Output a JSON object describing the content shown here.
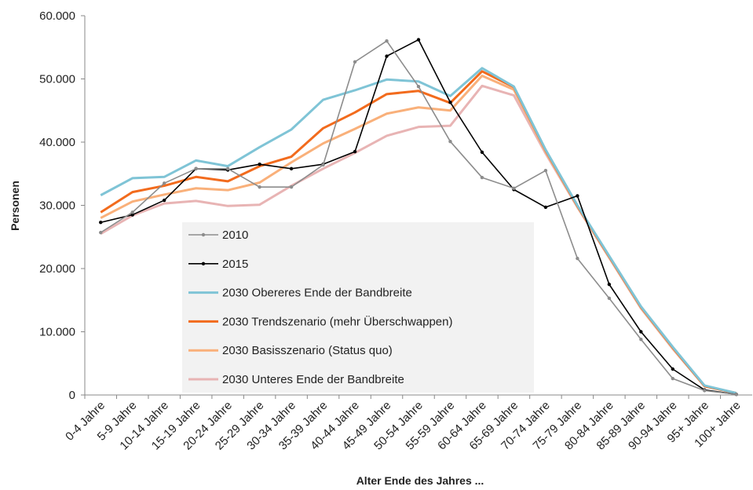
{
  "chart_data": {
    "type": "line",
    "y_label": "Personen",
    "x_label": "Alter Ende des Jahres ...",
    "categories": [
      "0-4 Jahre",
      "5-9 Jahre",
      "10-14 Jahre",
      "15-19 Jahre",
      "20-24 Jahre",
      "25-29 Jahre",
      "30-34 Jahre",
      "35-39 Jahre",
      "40-44 Jahre",
      "45-49 Jahre",
      "50-54 Jahre",
      "55-59 Jahre",
      "60-64 Jahre",
      "65-69 Jahre",
      "70-74 Jahre",
      "75-79 Jahre",
      "80-84 Jahre",
      "85-89 Jahre",
      "90-94 Jahre",
      "95+ Jahre",
      "100+ Jahre"
    ],
    "ylim": [
      0,
      60000
    ],
    "yticks": [
      {
        "value": 0,
        "label": "0"
      },
      {
        "value": 10000,
        "label": "10.000"
      },
      {
        "value": 20000,
        "label": "20.000"
      },
      {
        "value": 30000,
        "label": "30.000"
      },
      {
        "value": 40000,
        "label": "40.000"
      },
      {
        "value": 50000,
        "label": "50.000"
      },
      {
        "value": 60000,
        "label": "60.000"
      }
    ],
    "grid": false,
    "series": [
      {
        "name": "2010",
        "color": "#8c8c8c",
        "width": 1.6,
        "markers": true,
        "values": [
          25700,
          28900,
          33500,
          35800,
          35800,
          32900,
          32900,
          36400,
          52700,
          56000,
          48800,
          40100,
          34400,
          32700,
          35500,
          21600,
          15300,
          8800,
          2600,
          700,
          100
        ]
      },
      {
        "name": "2015",
        "color": "#000000",
        "width": 1.6,
        "markers": true,
        "values": [
          27300,
          28500,
          30800,
          35800,
          35600,
          36500,
          35800,
          36500,
          38500,
          53600,
          56200,
          46300,
          38400,
          32500,
          29700,
          31500,
          17500,
          10000,
          4100,
          800,
          100
        ]
      },
      {
        "name": "2030 Obereres Ende der Bandbreite",
        "color": "#7fc4d6",
        "width": 3,
        "markers": false,
        "values": [
          31600,
          34300,
          34500,
          37100,
          36200,
          39200,
          42000,
          46700,
          48200,
          49900,
          49600,
          47300,
          51700,
          48800,
          38800,
          30000,
          22000,
          14000,
          7600,
          1500,
          300
        ]
      },
      {
        "name": "2030 Trendszenario (mehr Überschwappen)",
        "color": "#f26b1d",
        "width": 3,
        "markers": false,
        "values": [
          28900,
          32100,
          33100,
          34500,
          33800,
          36200,
          37700,
          42200,
          44700,
          47600,
          48100,
          46200,
          51200,
          48700,
          38700,
          29900,
          21900,
          13900,
          7500,
          1400,
          300
        ]
      },
      {
        "name": "2030 Basisszenario (Status quo)",
        "color": "#f9b07a",
        "width": 3,
        "markers": false,
        "values": [
          28000,
          30600,
          31700,
          32700,
          32400,
          33600,
          36800,
          39800,
          42100,
          44500,
          45500,
          45000,
          50500,
          48300,
          38500,
          29800,
          21800,
          13800,
          7400,
          1400,
          300
        ]
      },
      {
        "name": "2030 Unteres Ende der Bandbreite",
        "color": "#e8b4b4",
        "width": 3,
        "markers": false,
        "values": [
          25500,
          28400,
          30300,
          30700,
          29900,
          30100,
          33100,
          35800,
          38300,
          41000,
          42400,
          42600,
          48900,
          47400,
          38200,
          29700,
          21700,
          13700,
          7300,
          1400,
          300
        ]
      }
    ]
  }
}
